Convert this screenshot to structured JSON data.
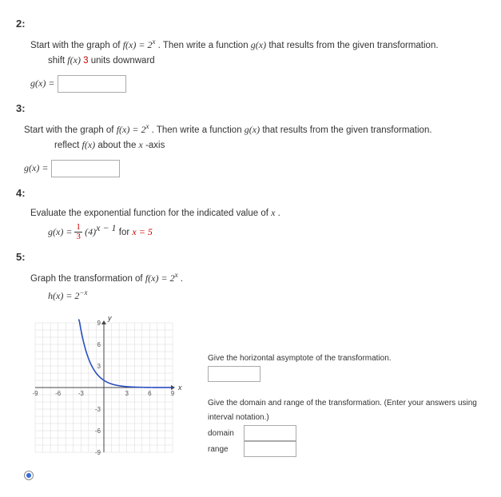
{
  "q2": {
    "num": "2:",
    "prompt_a": "Start with the graph of ",
    "f_eq": "f(x) = 2",
    "f_exp": "x",
    "prompt_b": ". Then write a function ",
    "g": "g(x)",
    "prompt_c": " that results from the given transformation.",
    "transform_a": "shift ",
    "transform_fx": "f(x)",
    "transform_n": " 3",
    "transform_b": " units downward",
    "answer_label": "g(x) ="
  },
  "q3": {
    "num": "3:",
    "prompt_a": "Start with the graph of ",
    "f_eq": "f(x) = 2",
    "f_exp": "x",
    "prompt_b": ". Then write a function ",
    "g": "g(x)",
    "prompt_c": " that results from the given transformation.",
    "transform_a": "reflect ",
    "transform_fx": "f(x)",
    "transform_b": " about the ",
    "transform_axis": "x",
    "transform_c": "-axis",
    "answer_label": "g(x) ="
  },
  "q4": {
    "num": "4:",
    "prompt": "Evaluate the exponential function for the indicated value of ",
    "var": "x",
    "dot": ".",
    "g_label": "g(x) = ",
    "frac_num": "1",
    "frac_den": "3",
    "base": "(4)",
    "exp_a": "x",
    "exp_b": " − 1",
    "for": " for ",
    "xval": "x = 5"
  },
  "q5": {
    "num": "5:",
    "prompt_a": "Graph the transformation of ",
    "f_eq": "f(x) = 2",
    "f_exp": "x",
    "dot": ".",
    "h_eq": "h(x) = 2",
    "h_exp": "−x",
    "asymptote_q": "Give the horizontal asymptote of the transformation.",
    "dr_q": "Give the domain and range of the transformation. (Enter your answers using interval notation.)",
    "domain_label": "domain",
    "range_label": "range",
    "graph": {
      "xmin": -9,
      "xmax": 9,
      "ymin": -9,
      "ymax": 9,
      "xticks": [
        -9,
        -6,
        -3,
        3,
        6,
        9
      ],
      "yticks": [
        -9,
        -6,
        -3,
        3,
        6,
        9
      ],
      "grid_color": "#d8d8d8",
      "axis_color": "#444",
      "curve_color": "#2a4fbf",
      "bg": "#ffffff",
      "xlabel": "x",
      "ylabel": "y"
    }
  }
}
